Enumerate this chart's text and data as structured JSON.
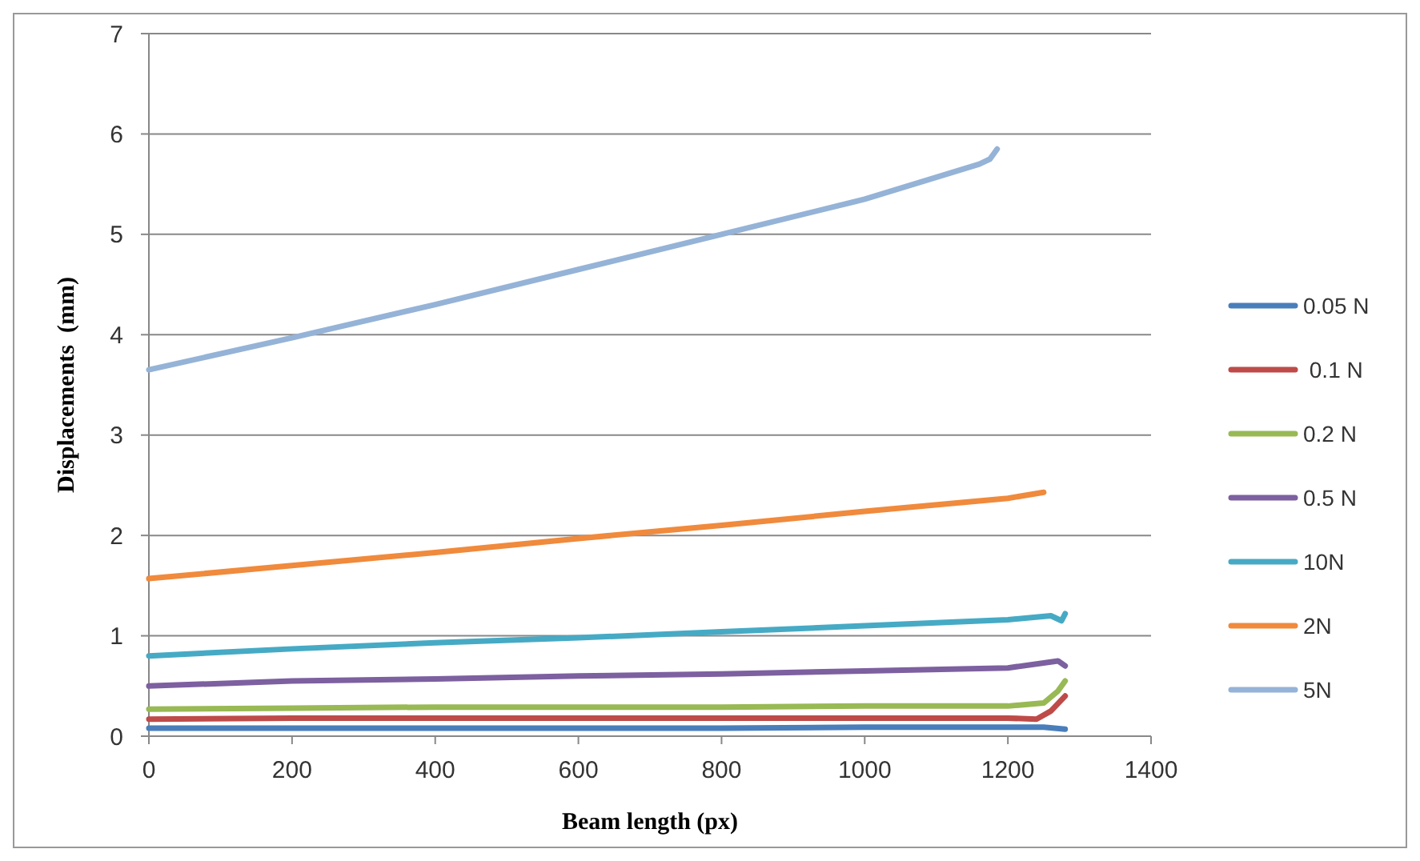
{
  "chart_data": {
    "type": "line",
    "xlabel": "Beam length  (px)",
    "ylabel": "Displacements  (mm)",
    "xlim": [
      0,
      1400
    ],
    "xticks": [
      0,
      200,
      400,
      600,
      800,
      1000,
      1200,
      1400
    ],
    "ylim": [
      0,
      7
    ],
    "yticks": [
      0,
      1,
      2,
      3,
      4,
      5,
      6,
      7
    ],
    "grid": "y",
    "legend": "right",
    "marker": "none",
    "line_style": "solid",
    "series": [
      {
        "name": "0.05 N",
        "color": "#4a7ebb",
        "x": [
          0,
          200,
          400,
          600,
          800,
          1000,
          1200,
          1250,
          1280
        ],
        "values": [
          0.08,
          0.08,
          0.08,
          0.08,
          0.08,
          0.09,
          0.09,
          0.09,
          0.07
        ]
      },
      {
        "name": " 0.1 N",
        "color": "#be4b48",
        "x": [
          0,
          200,
          400,
          600,
          800,
          1000,
          1200,
          1240,
          1260,
          1280
        ],
        "values": [
          0.17,
          0.18,
          0.18,
          0.18,
          0.18,
          0.18,
          0.18,
          0.17,
          0.25,
          0.4
        ]
      },
      {
        "name": "0.2 N",
        "color": "#98b954",
        "x": [
          0,
          200,
          400,
          600,
          800,
          1000,
          1200,
          1250,
          1270,
          1280
        ],
        "values": [
          0.27,
          0.28,
          0.29,
          0.29,
          0.29,
          0.3,
          0.3,
          0.33,
          0.45,
          0.55
        ]
      },
      {
        "name": "0.5 N",
        "color": "#7d60a0",
        "x": [
          0,
          200,
          400,
          600,
          800,
          1000,
          1200,
          1270,
          1280
        ],
        "values": [
          0.5,
          0.55,
          0.57,
          0.6,
          0.62,
          0.65,
          0.68,
          0.75,
          0.7
        ]
      },
      {
        "name": "10N",
        "color": "#46aac5",
        "x": [
          0,
          200,
          400,
          600,
          800,
          1000,
          1200,
          1260,
          1275,
          1280
        ],
        "values": [
          0.8,
          0.87,
          0.93,
          0.98,
          1.04,
          1.1,
          1.16,
          1.2,
          1.15,
          1.22
        ]
      },
      {
        "name": "2N",
        "color": "#f08a3c",
        "x": [
          0,
          200,
          400,
          600,
          800,
          1000,
          1200,
          1250
        ],
        "values": [
          1.57,
          1.7,
          1.83,
          1.97,
          2.1,
          2.24,
          2.37,
          2.43
        ]
      },
      {
        "name": "5N",
        "color": "#95b3d7",
        "x": [
          0,
          200,
          400,
          600,
          800,
          1000,
          1160,
          1175,
          1185
        ],
        "values": [
          3.65,
          3.97,
          4.3,
          4.65,
          5.0,
          5.35,
          5.7,
          5.75,
          5.85
        ]
      }
    ]
  }
}
